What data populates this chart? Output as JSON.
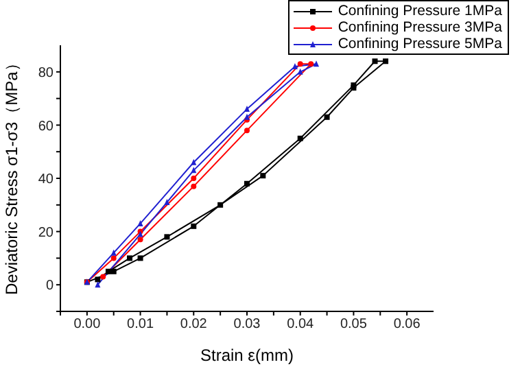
{
  "chart_data": {
    "type": "line",
    "xlabel": "Strain ε(mm)",
    "ylabel": "Deviatoric Stress σ1-σ3（MPa）",
    "xlim": [
      -0.005,
      0.065
    ],
    "ylim": [
      -10,
      90
    ],
    "xticks": [
      {
        "value": -0.005,
        "label": null
      },
      {
        "value": 0,
        "label": "0.00"
      },
      {
        "value": 0.005,
        "label": null
      },
      {
        "value": 0.01,
        "label": "0.01"
      },
      {
        "value": 0.015,
        "label": null
      },
      {
        "value": 0.02,
        "label": "0.02"
      },
      {
        "value": 0.025,
        "label": null
      },
      {
        "value": 0.03,
        "label": "0.03"
      },
      {
        "value": 0.035,
        "label": null
      },
      {
        "value": 0.04,
        "label": "0.04"
      },
      {
        "value": 0.045,
        "label": null
      },
      {
        "value": 0.05,
        "label": "0.05"
      },
      {
        "value": 0.055,
        "label": null
      },
      {
        "value": 0.06,
        "label": "0.06"
      }
    ],
    "yticks": [
      {
        "value": -10,
        "label": null
      },
      0,
      {
        "value": 10,
        "label": null
      },
      20,
      {
        "value": 30,
        "label": null
      },
      40,
      {
        "value": 50,
        "label": null
      },
      60,
      {
        "value": 70,
        "label": null
      },
      80
    ],
    "legend": "top right",
    "grid": false,
    "line_style": "solid",
    "series": [
      {
        "name": "Confining Pressure 1MPa",
        "color": "#000000",
        "marker": "square",
        "x": [
          0,
          0.005,
          0.01,
          0.02,
          0.03,
          0.04,
          0.05,
          0.054,
          0.056,
          0.05,
          0.045,
          0.033,
          0.025,
          0.015,
          0.008,
          0.004,
          0.002
        ],
        "values": [
          1,
          5,
          10,
          22,
          38,
          55,
          75,
          84,
          84,
          74,
          63,
          41,
          30,
          18,
          10,
          5,
          2
        ]
      },
      {
        "name": "Confining Pressure 3MPa",
        "color": "#ff0000",
        "marker": "circle",
        "x": [
          0,
          0.005,
          0.01,
          0.02,
          0.03,
          0.04,
          0.042,
          0.03,
          0.02,
          0.01,
          0.003
        ],
        "values": [
          1,
          10,
          20,
          40,
          62,
          83,
          83,
          58,
          37,
          17,
          3
        ]
      },
      {
        "name": "Confining Pressure 5MPa",
        "color": "#2020d0",
        "marker": "triangle",
        "x": [
          0.002,
          0.01,
          0.015,
          0.02,
          0.03,
          0.04,
          0.043,
          0.039,
          0.03,
          0.02,
          0.01,
          0.005,
          0
        ],
        "values": [
          0,
          19,
          31,
          43,
          63,
          80,
          83,
          82,
          66,
          46,
          23,
          12,
          1
        ]
      }
    ]
  }
}
